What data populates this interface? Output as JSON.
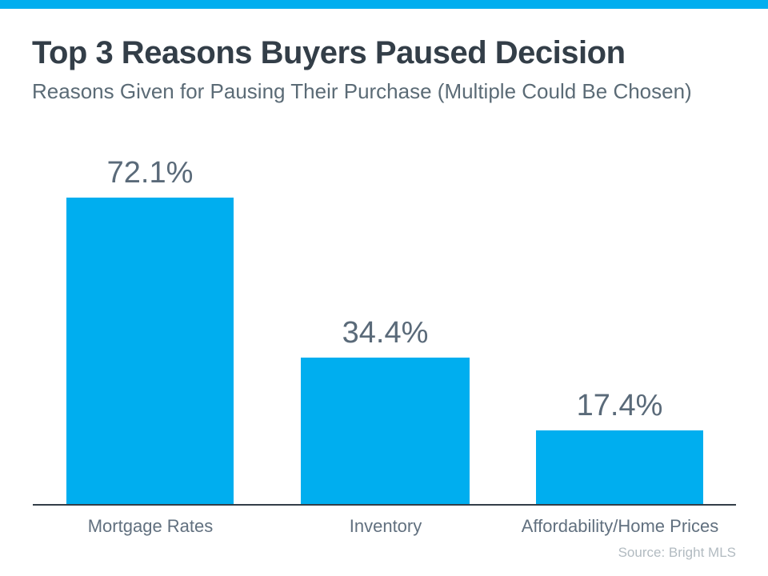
{
  "page": {
    "title": "Top 3 Reasons Buyers Paused Decision",
    "subtitle": "Reasons Given for Pausing Their Purchase (Multiple Could Be Chosen)",
    "source": "Source: Bright MLS"
  },
  "colors": {
    "accent": "#00AEEF",
    "title_text": "#333E48",
    "muted_text": "#5B6B76",
    "value_label_text": "#5A6A79",
    "category_label_text": "#61707F",
    "source_text": "#B2BBC1",
    "axis": "#333E48"
  },
  "chart_data": {
    "type": "bar",
    "title": "Top 3 Reasons Buyers Paused Decision",
    "subtitle": "Reasons Given for Pausing Their Purchase (Multiple Could Be Chosen)",
    "categories": [
      "Mortgage Rates",
      "Inventory",
      "Affordability/Home Prices"
    ],
    "values": [
      72.1,
      34.4,
      17.4
    ],
    "value_labels": [
      "72.1%",
      "34.4%",
      "17.4%"
    ],
    "unit": "%",
    "bar_color": "#00AEEF",
    "ylim": [
      0,
      100
    ],
    "grid": false,
    "legend": false,
    "data_labels_position": "above-bars",
    "source": "Source: Bright MLS"
  }
}
